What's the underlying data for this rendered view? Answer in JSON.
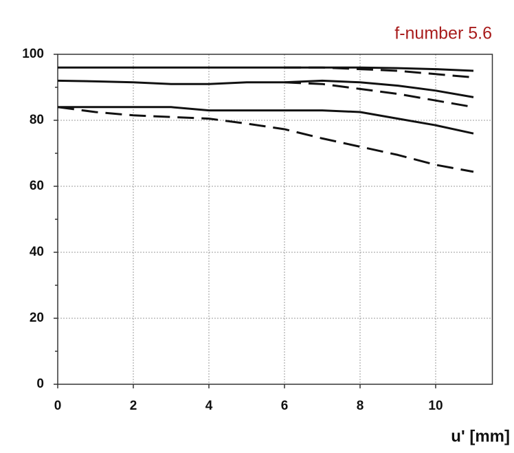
{
  "chart_data": {
    "type": "line",
    "title": "f-number 5.6",
    "x_label": "u' [mm]",
    "x": [
      0,
      1,
      2,
      3,
      4,
      5,
      6,
      7,
      8,
      9,
      10,
      11
    ],
    "series": [
      {
        "color": "#111111",
        "dashed": false,
        "values": [
          96,
          96,
          96,
          96,
          96,
          96,
          96,
          96,
          96,
          95.8,
          95.5,
          95
        ]
      },
      {
        "color": "#111111",
        "dashed": true,
        "values": [
          null,
          null,
          null,
          null,
          null,
          null,
          96,
          96,
          95.5,
          95,
          94,
          93
        ]
      },
      {
        "color": "#111111",
        "dashed": false,
        "values": [
          92,
          91.8,
          91.5,
          91,
          91,
          91.5,
          91.5,
          92,
          91.5,
          90.5,
          89,
          87
        ]
      },
      {
        "color": "#111111",
        "dashed": true,
        "values": [
          null,
          null,
          null,
          null,
          null,
          null,
          91.5,
          91,
          89.5,
          88,
          86,
          84
        ]
      },
      {
        "color": "#111111",
        "dashed": false,
        "values": [
          84,
          84,
          84,
          84,
          83,
          83,
          83,
          83,
          82.5,
          80.5,
          78.5,
          76
        ]
      },
      {
        "color": "#111111",
        "dashed": true,
        "values": [
          84,
          82.5,
          81.5,
          81,
          80.5,
          79,
          77.3,
          74.5,
          72,
          69.5,
          66.5,
          64.4
        ]
      }
    ],
    "xlim": [
      0,
      11.5
    ],
    "ylim": [
      0,
      100
    ],
    "xticks": [
      0,
      2,
      4,
      6,
      8,
      10
    ],
    "yticks": [
      0,
      20,
      40,
      60,
      80,
      100
    ],
    "yminorticks": [
      10,
      30,
      50,
      70,
      90
    ],
    "grid": true
  }
}
